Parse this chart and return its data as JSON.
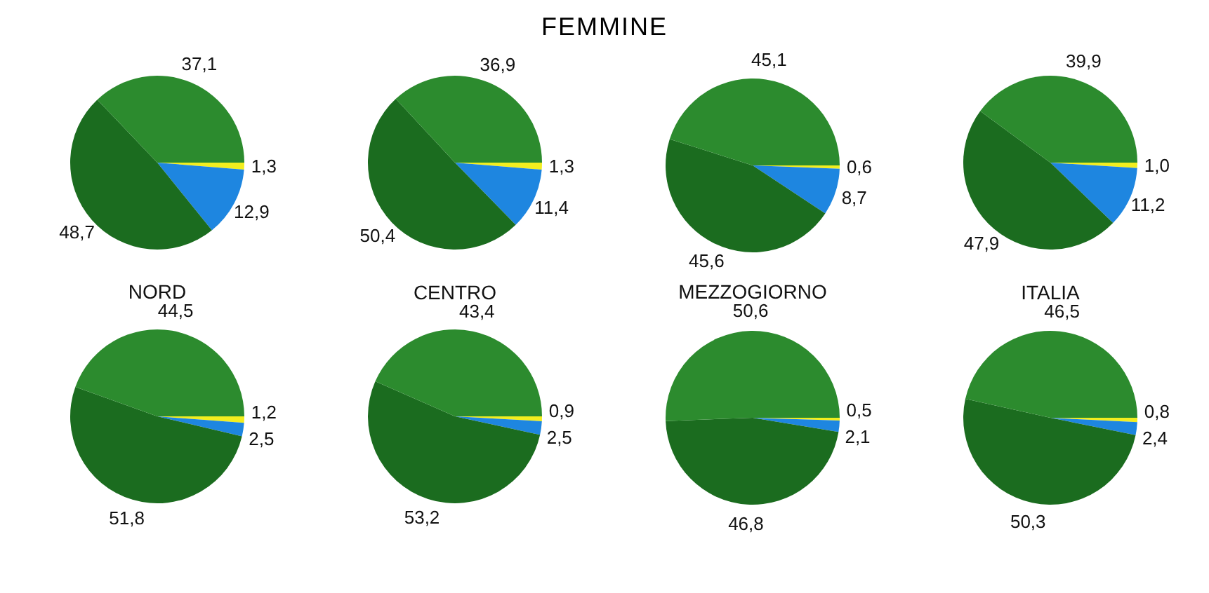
{
  "chart_data": [
    {
      "type": "pie",
      "title": "FEMMINE",
      "categories": [
        null,
        null,
        null,
        null
      ],
      "values": [
        1.3,
        12.9,
        48.7,
        37.1
      ],
      "value_labels": [
        "1,3",
        "12,9",
        "48,7",
        "37,1"
      ],
      "colors": [
        "#f2ee1f",
        "#1e86e0",
        "#1b6c1f",
        "#2c8b2e"
      ]
    },
    {
      "type": "pie",
      "categories": [
        null,
        null,
        null,
        null
      ],
      "values": [
        1.3,
        11.4,
        50.4,
        36.9
      ],
      "value_labels": [
        "1,3",
        "11,4",
        "50,4",
        "36,9"
      ],
      "colors": [
        "#f2ee1f",
        "#1e86e0",
        "#1b6c1f",
        "#2c8b2e"
      ]
    },
    {
      "type": "pie",
      "categories": [
        null,
        null,
        null,
        null
      ],
      "values": [
        0.6,
        8.7,
        45.6,
        45.1
      ],
      "value_labels": [
        "0,6",
        "8,7",
        "45,6",
        "45,1"
      ],
      "colors": [
        "#f2ee1f",
        "#1e86e0",
        "#1b6c1f",
        "#2c8b2e"
      ]
    },
    {
      "type": "pie",
      "categories": [
        null,
        null,
        null,
        null
      ],
      "values": [
        1.0,
        11.2,
        47.9,
        39.9
      ],
      "value_labels": [
        "1,0",
        "11,2",
        "47,9",
        "39,9"
      ],
      "colors": [
        "#f2ee1f",
        "#1e86e0",
        "#1b6c1f",
        "#2c8b2e"
      ]
    },
    {
      "type": "pie",
      "title": "NORD",
      "categories": [
        null,
        null,
        null,
        null
      ],
      "values": [
        1.2,
        2.5,
        51.8,
        44.5
      ],
      "value_labels": [
        "1,2",
        "2,5",
        "51,8",
        "44,5"
      ],
      "colors": [
        "#f2ee1f",
        "#1e86e0",
        "#1b6c1f",
        "#2c8b2e"
      ]
    },
    {
      "type": "pie",
      "title": "CENTRO",
      "categories": [
        null,
        null,
        null,
        null
      ],
      "values": [
        0.9,
        2.5,
        53.2,
        43.4
      ],
      "value_labels": [
        "0,9",
        "2,5",
        "53,2",
        "43,4"
      ],
      "colors": [
        "#f2ee1f",
        "#1e86e0",
        "#1b6c1f",
        "#2c8b2e"
      ]
    },
    {
      "type": "pie",
      "title": "MEZZOGIORNO",
      "categories": [
        null,
        null,
        null,
        null
      ],
      "values": [
        0.5,
        2.1,
        46.8,
        50.6
      ],
      "value_labels": [
        "0,5",
        "2,1",
        "46,8",
        "50,6"
      ],
      "colors": [
        "#f2ee1f",
        "#1e86e0",
        "#1b6c1f",
        "#2c8b2e"
      ]
    },
    {
      "type": "pie",
      "title": "ITALIA",
      "categories": [
        null,
        null,
        null,
        null
      ],
      "values": [
        0.8,
        2.4,
        50.3,
        46.5
      ],
      "value_labels": [
        "0,8",
        "2,4",
        "50,3",
        "46,5"
      ],
      "colors": [
        "#f2ee1f",
        "#1e86e0",
        "#1b6c1f",
        "#2c8b2e"
      ]
    }
  ]
}
